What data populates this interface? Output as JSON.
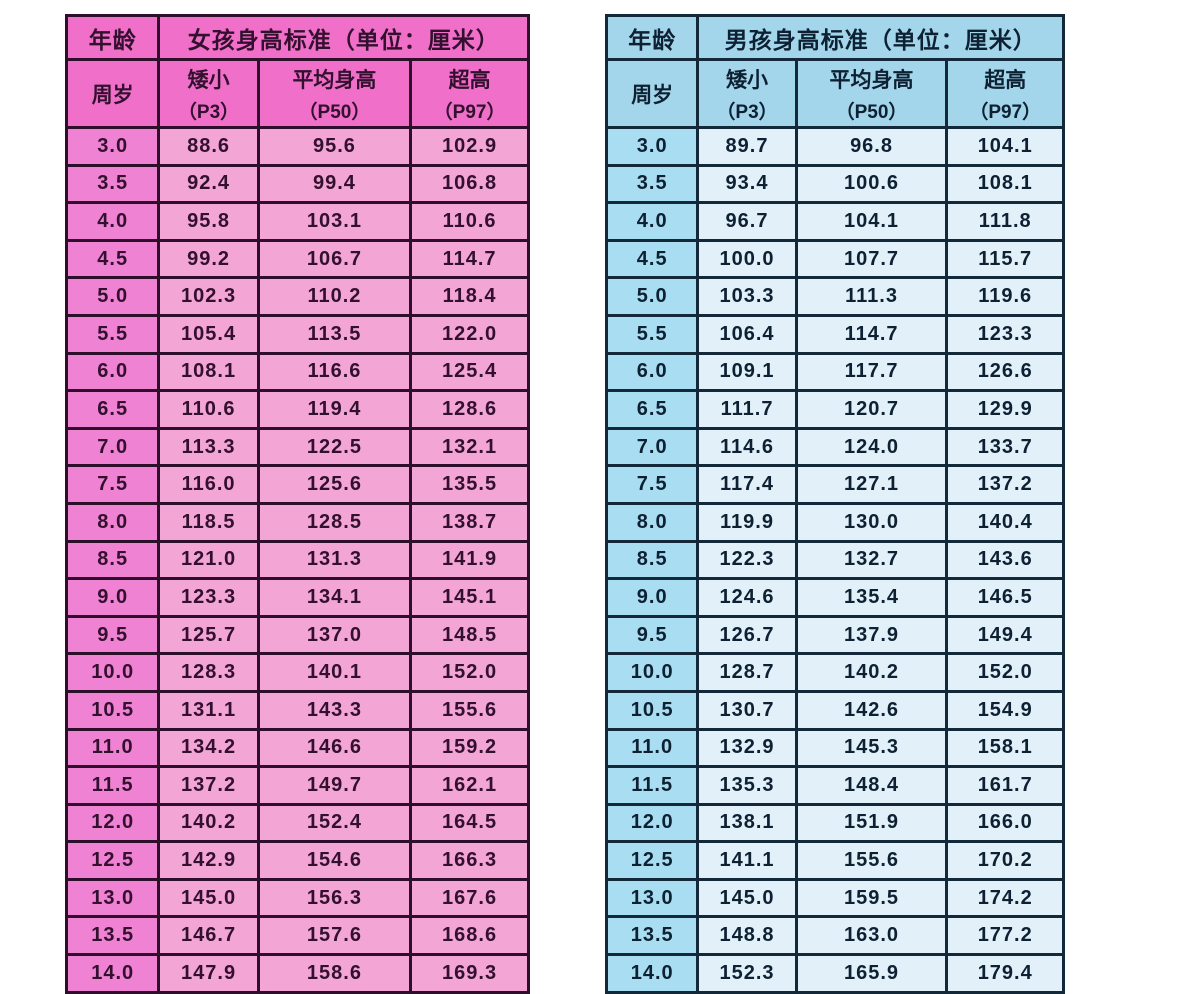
{
  "page": {
    "background": "#ffffff"
  },
  "tables": [
    {
      "name": "girls",
      "header": {
        "age_title": "年龄",
        "main_title": "女孩身高标准（单位：厘米）",
        "age_subtitle": "周岁",
        "columns": [
          {
            "label": "矮小",
            "sub": "（P3）"
          },
          {
            "label": "平均身高",
            "sub": "（P50）"
          },
          {
            "label": "超高",
            "sub": "（P97）"
          }
        ]
      },
      "theme": {
        "border": "#2d0e2b",
        "header_bg": "#f06fc8",
        "age_col_bg": "#ef82d3",
        "cell_bg": "#f3a6d6",
        "text": "#33102e"
      }
    },
    {
      "name": "boys",
      "header": {
        "age_title": "年龄",
        "main_title": "男孩身高标准（单位：厘米）",
        "age_subtitle": "周岁",
        "columns": [
          {
            "label": "矮小",
            "sub": "（P3）"
          },
          {
            "label": "平均身高",
            "sub": "（P50）"
          },
          {
            "label": "超高",
            "sub": "（P97）"
          }
        ]
      },
      "theme": {
        "border": "#13293a",
        "header_bg": "#a3d5eb",
        "age_col_bg": "#a9ddf1",
        "cell_bg": "#e2f1f9",
        "text": "#0e2133"
      }
    }
  ],
  "chart_data": [
    {
      "type": "table",
      "title": "女孩身高标准（单位：厘米）",
      "columns": [
        "年龄（周岁）",
        "矮小（P3）",
        "平均身高（P50）",
        "超高（P97）"
      ],
      "rows": [
        [
          "3.0",
          88.6,
          95.6,
          102.9
        ],
        [
          "3.5",
          92.4,
          99.4,
          106.8
        ],
        [
          "4.0",
          95.8,
          103.1,
          110.6
        ],
        [
          "4.5",
          99.2,
          106.7,
          114.7
        ],
        [
          "5.0",
          102.3,
          110.2,
          118.4
        ],
        [
          "5.5",
          105.4,
          113.5,
          122.0
        ],
        [
          "6.0",
          108.1,
          116.6,
          125.4
        ],
        [
          "6.5",
          110.6,
          119.4,
          128.6
        ],
        [
          "7.0",
          113.3,
          122.5,
          132.1
        ],
        [
          "7.5",
          116.0,
          125.6,
          135.5
        ],
        [
          "8.0",
          118.5,
          128.5,
          138.7
        ],
        [
          "8.5",
          121.0,
          131.3,
          141.9
        ],
        [
          "9.0",
          123.3,
          134.1,
          145.1
        ],
        [
          "9.5",
          125.7,
          137.0,
          148.5
        ],
        [
          "10.0",
          128.3,
          140.1,
          152.0
        ],
        [
          "10.5",
          131.1,
          143.3,
          155.6
        ],
        [
          "11.0",
          134.2,
          146.6,
          159.2
        ],
        [
          "11.5",
          137.2,
          149.7,
          162.1
        ],
        [
          "12.0",
          140.2,
          152.4,
          164.5
        ],
        [
          "12.5",
          142.9,
          154.6,
          166.3
        ],
        [
          "13.0",
          145.0,
          156.3,
          167.6
        ],
        [
          "13.5",
          146.7,
          157.6,
          168.6
        ],
        [
          "14.0",
          147.9,
          158.6,
          169.3
        ]
      ]
    },
    {
      "type": "table",
      "title": "男孩身高标准（单位：厘米）",
      "columns": [
        "年龄（周岁）",
        "矮小（P3）",
        "平均身高（P50）",
        "超高（P97）"
      ],
      "rows": [
        [
          "3.0",
          89.7,
          96.8,
          104.1
        ],
        [
          "3.5",
          93.4,
          100.6,
          108.1
        ],
        [
          "4.0",
          96.7,
          104.1,
          111.8
        ],
        [
          "4.5",
          100.0,
          107.7,
          115.7
        ],
        [
          "5.0",
          103.3,
          111.3,
          119.6
        ],
        [
          "5.5",
          106.4,
          114.7,
          123.3
        ],
        [
          "6.0",
          109.1,
          117.7,
          126.6
        ],
        [
          "6.5",
          111.7,
          120.7,
          129.9
        ],
        [
          "7.0",
          114.6,
          124.0,
          133.7
        ],
        [
          "7.5",
          117.4,
          127.1,
          137.2
        ],
        [
          "8.0",
          119.9,
          130.0,
          140.4
        ],
        [
          "8.5",
          122.3,
          132.7,
          143.6
        ],
        [
          "9.0",
          124.6,
          135.4,
          146.5
        ],
        [
          "9.5",
          126.7,
          137.9,
          149.4
        ],
        [
          "10.0",
          128.7,
          140.2,
          152.0
        ],
        [
          "10.5",
          130.7,
          142.6,
          154.9
        ],
        [
          "11.0",
          132.9,
          145.3,
          158.1
        ],
        [
          "11.5",
          135.3,
          148.4,
          161.7
        ],
        [
          "12.0",
          138.1,
          151.9,
          166.0
        ],
        [
          "12.5",
          141.1,
          155.6,
          170.2
        ],
        [
          "13.0",
          145.0,
          159.5,
          174.2
        ],
        [
          "13.5",
          148.8,
          163.0,
          177.2
        ],
        [
          "14.0",
          152.3,
          165.9,
          179.4
        ]
      ]
    }
  ]
}
